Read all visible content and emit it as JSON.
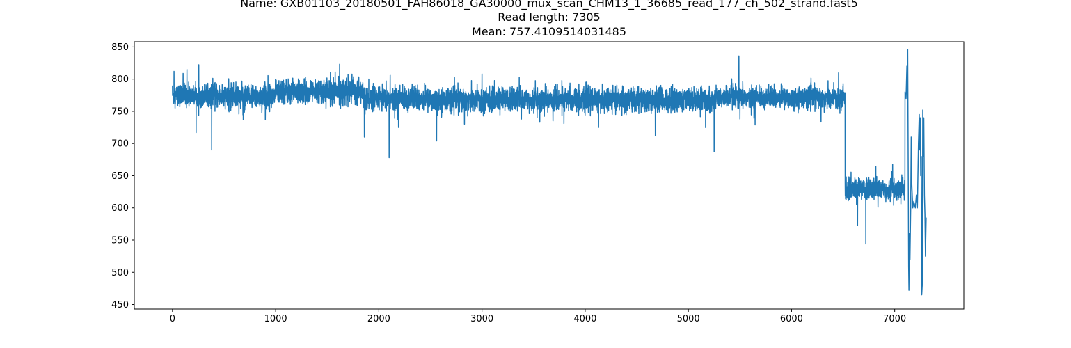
{
  "chart_data": {
    "type": "line",
    "title_lines": [
      "Name: GXB01103_20180501_FAH86018_GA30000_mux_scan_CHM13_1_36685_read_177_ch_502_strand.fast5",
      "Read length: 7305",
      "Mean: 757.4109514031485"
    ],
    "xlabel": "",
    "ylabel": "",
    "xlim": [
      -370,
      7670
    ],
    "ylim": [
      443,
      858
    ],
    "xticks": [
      0,
      1000,
      2000,
      3000,
      4000,
      5000,
      6000,
      7000
    ],
    "xtick_labels": [
      "0",
      "1000",
      "2000",
      "3000",
      "4000",
      "5000",
      "6000",
      "7000"
    ],
    "yticks": [
      450,
      500,
      550,
      600,
      650,
      700,
      750,
      800,
      850
    ],
    "ytick_labels": [
      "450",
      "500",
      "550",
      "600",
      "650",
      "700",
      "750",
      "800",
      "850"
    ],
    "grid": false,
    "legend": "none",
    "series_color": "#1f77b4",
    "n_points": 7305,
    "segments": [
      {
        "x_start": 0,
        "x_end": 380,
        "base": 775,
        "noise": 8
      },
      {
        "x_start": 380,
        "x_end": 1000,
        "base": 773,
        "noise": 9
      },
      {
        "x_start": 1000,
        "x_end": 1850,
        "base": 781,
        "noise": 9
      },
      {
        "x_start": 1850,
        "x_end": 2500,
        "base": 769,
        "noise": 9
      },
      {
        "x_start": 2500,
        "x_end": 5240,
        "base": 768,
        "noise": 9
      },
      {
        "x_start": 5240,
        "x_end": 6520,
        "base": 771,
        "noise": 8
      },
      {
        "x_start": 6520,
        "x_end": 7100,
        "base": 629,
        "noise": 8
      }
    ],
    "spikes": [
      {
        "x": 0,
        "y": 790
      },
      {
        "x": 15,
        "y": 812
      },
      {
        "x": 25,
        "y": 755
      },
      {
        "x": 140,
        "y": 815
      },
      {
        "x": 380,
        "y": 690
      },
      {
        "x": 540,
        "y": 752
      },
      {
        "x": 900,
        "y": 737
      },
      {
        "x": 1530,
        "y": 757
      },
      {
        "x": 1620,
        "y": 823
      },
      {
        "x": 1860,
        "y": 710
      },
      {
        "x": 2100,
        "y": 678
      },
      {
        "x": 2110,
        "y": 806
      },
      {
        "x": 2560,
        "y": 704
      },
      {
        "x": 3560,
        "y": 733
      },
      {
        "x": 4130,
        "y": 725
      },
      {
        "x": 4680,
        "y": 712
      },
      {
        "x": 5250,
        "y": 687
      },
      {
        "x": 5490,
        "y": 836
      },
      {
        "x": 5500,
        "y": 738
      },
      {
        "x": 6500,
        "y": 793
      },
      {
        "x": 6640,
        "y": 573
      },
      {
        "x": 6720,
        "y": 544
      },
      {
        "x": 6980,
        "y": 668
      }
    ],
    "tail": [
      {
        "x": 7080,
        "y": 632
      },
      {
        "x": 7095,
        "y": 660
      },
      {
        "x": 7100,
        "y": 780
      },
      {
        "x": 7110,
        "y": 770
      },
      {
        "x": 7118,
        "y": 820
      },
      {
        "x": 7122,
        "y": 770
      },
      {
        "x": 7126,
        "y": 846
      },
      {
        "x": 7130,
        "y": 700
      },
      {
        "x": 7135,
        "y": 510
      },
      {
        "x": 7138,
        "y": 472
      },
      {
        "x": 7142,
        "y": 560
      },
      {
        "x": 7148,
        "y": 520
      },
      {
        "x": 7155,
        "y": 600
      },
      {
        "x": 7160,
        "y": 710
      },
      {
        "x": 7165,
        "y": 640
      },
      {
        "x": 7175,
        "y": 600
      },
      {
        "x": 7185,
        "y": 610
      },
      {
        "x": 7200,
        "y": 600
      },
      {
        "x": 7210,
        "y": 620
      },
      {
        "x": 7220,
        "y": 600
      },
      {
        "x": 7230,
        "y": 700
      },
      {
        "x": 7238,
        "y": 745
      },
      {
        "x": 7243,
        "y": 690
      },
      {
        "x": 7248,
        "y": 740
      },
      {
        "x": 7252,
        "y": 650
      },
      {
        "x": 7258,
        "y": 680
      },
      {
        "x": 7262,
        "y": 465
      },
      {
        "x": 7267,
        "y": 480
      },
      {
        "x": 7272,
        "y": 752
      },
      {
        "x": 7278,
        "y": 680
      },
      {
        "x": 7282,
        "y": 740
      },
      {
        "x": 7288,
        "y": 620
      },
      {
        "x": 7293,
        "y": 590
      },
      {
        "x": 7298,
        "y": 525
      },
      {
        "x": 7305,
        "y": 585
      }
    ]
  }
}
